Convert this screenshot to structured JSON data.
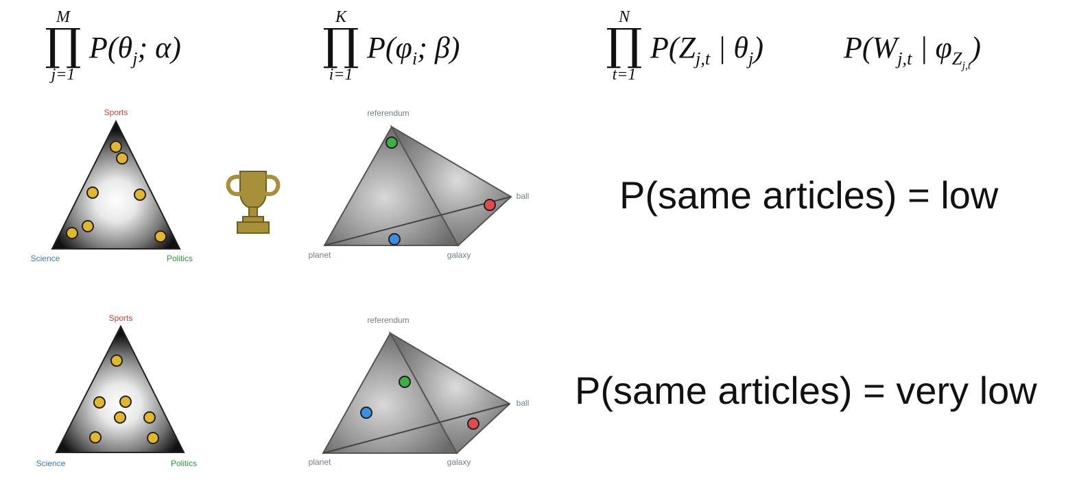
{
  "formulas": [
    {
      "upper": "M",
      "lower": "j=1",
      "term": "P(θ<sub>j</sub>; α)"
    },
    {
      "upper": "K",
      "lower": "i=1",
      "term": "P(φ<sub>i</sub>; β)"
    },
    {
      "upper": "N",
      "lower": "t=1",
      "term": "P(Z<sub>j,t</sub> | θ<sub>j</sub>)"
    },
    {
      "term": "P(W<sub>j,t</sub> | φ<sub>Z<sub>j,t</sub></sub>)"
    }
  ],
  "topic_simplex": {
    "vertices": {
      "top": "Sports",
      "left": "Science",
      "right": "Politics"
    },
    "vertex_colors": {
      "top": "#d0402f",
      "left": "#2f7fd0",
      "right": "#2e9a3a"
    }
  },
  "word_simplex": {
    "vertices": {
      "top": "referendum",
      "right": "ball",
      "bottom_left": "planet",
      "bottom_right": "galaxy"
    },
    "label_color": "#6f7f8f"
  },
  "trophy_icon": "trophy-icon",
  "rows": [
    {
      "result": "P(same articles) = low"
    },
    {
      "result": "P(same articles) = very low"
    }
  ],
  "dot_colors": {
    "topic": "#e2b72c",
    "green": "#3cb043",
    "red": "#e34a4a",
    "blue": "#3a8fe0"
  }
}
